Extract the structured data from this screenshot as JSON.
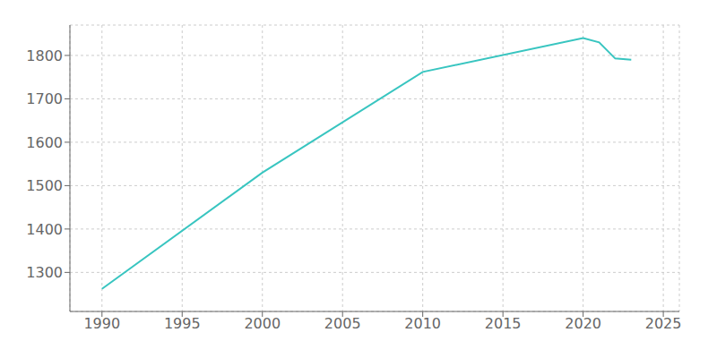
{
  "chart_data": {
    "type": "line",
    "x": [
      1990,
      2000,
      2010,
      2020,
      2021,
      2022,
      2023
    ],
    "values": [
      1262,
      1530,
      1762,
      1840,
      1830,
      1793,
      1790
    ],
    "color": "#38c5c0",
    "xlim": [
      1988,
      2026
    ],
    "ylim": [
      1210,
      1870
    ],
    "xticks": [
      1990,
      1995,
      2000,
      2005,
      2010,
      2015,
      2020,
      2025
    ],
    "yticks": [
      1300,
      1400,
      1500,
      1600,
      1700,
      1800
    ],
    "grid": true
  }
}
